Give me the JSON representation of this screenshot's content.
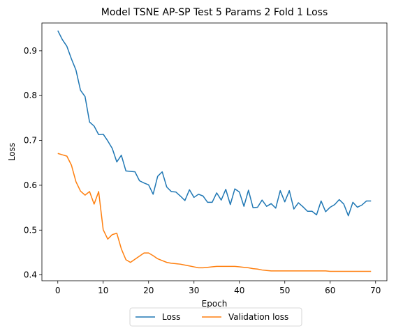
{
  "chart_data": {
    "type": "line",
    "title": "Model TSNE AP-SP Test 5 Params 2 Fold 1 Loss",
    "xlabel": "Epoch",
    "ylabel": "Loss",
    "xlim": [
      -3.5,
      72.5
    ],
    "ylim": [
      0.387,
      0.962
    ],
    "xticks": [
      0,
      10,
      20,
      30,
      40,
      50,
      60,
      70
    ],
    "yticks": [
      0.4,
      0.5,
      0.6,
      0.7,
      0.8,
      0.9
    ],
    "ytick_labels": [
      "0.4",
      "0.5",
      "0.6",
      "0.7",
      "0.8",
      "0.9"
    ],
    "grid": false,
    "legend_position": "bottom-center-outside",
    "x": [
      0,
      1,
      2,
      3,
      4,
      5,
      6,
      7,
      8,
      9,
      10,
      11,
      12,
      13,
      14,
      15,
      16,
      17,
      18,
      19,
      20,
      21,
      22,
      23,
      24,
      25,
      26,
      27,
      28,
      29,
      30,
      31,
      32,
      33,
      34,
      35,
      36,
      37,
      38,
      39,
      40,
      41,
      42,
      43,
      44,
      45,
      46,
      47,
      48,
      49,
      50,
      51,
      52,
      53,
      54,
      55,
      56,
      57,
      58,
      59,
      60,
      61,
      62,
      63,
      64,
      65,
      66,
      67,
      68,
      69
    ],
    "series": [
      {
        "name": "Loss",
        "color": "#1f77b4",
        "values": [
          0.945,
          0.925,
          0.91,
          0.882,
          0.857,
          0.812,
          0.798,
          0.741,
          0.732,
          0.713,
          0.714,
          0.699,
          0.682,
          0.652,
          0.667,
          0.632,
          0.631,
          0.63,
          0.61,
          0.605,
          0.601,
          0.58,
          0.62,
          0.63,
          0.596,
          0.586,
          0.585,
          0.576,
          0.566,
          0.59,
          0.573,
          0.58,
          0.576,
          0.562,
          0.562,
          0.583,
          0.567,
          0.591,
          0.557,
          0.592,
          0.585,
          0.553,
          0.589,
          0.55,
          0.551,
          0.567,
          0.553,
          0.559,
          0.549,
          0.588,
          0.563,
          0.588,
          0.547,
          0.561,
          0.552,
          0.542,
          0.542,
          0.534,
          0.565,
          0.541,
          0.551,
          0.557,
          0.568,
          0.558,
          0.532,
          0.562,
          0.551,
          0.556,
          0.565,
          0.565
        ]
      },
      {
        "name": "Validation loss",
        "color": "#ff7f0e",
        "values": [
          0.671,
          0.668,
          0.665,
          0.645,
          0.608,
          0.587,
          0.578,
          0.586,
          0.558,
          0.586,
          0.501,
          0.48,
          0.49,
          0.493,
          0.458,
          0.434,
          0.428,
          0.435,
          0.442,
          0.449,
          0.449,
          0.443,
          0.436,
          0.432,
          0.428,
          0.426,
          0.425,
          0.424,
          0.422,
          0.42,
          0.418,
          0.416,
          0.416,
          0.417,
          0.418,
          0.419,
          0.419,
          0.419,
          0.419,
          0.419,
          0.418,
          0.417,
          0.416,
          0.414,
          0.413,
          0.411,
          0.41,
          0.409,
          0.409,
          0.409,
          0.409,
          0.409,
          0.409,
          0.409,
          0.409,
          0.409,
          0.409,
          0.409,
          0.409,
          0.409,
          0.408,
          0.408,
          0.408,
          0.408,
          0.408,
          0.408,
          0.408,
          0.408,
          0.408,
          0.408
        ]
      }
    ]
  }
}
